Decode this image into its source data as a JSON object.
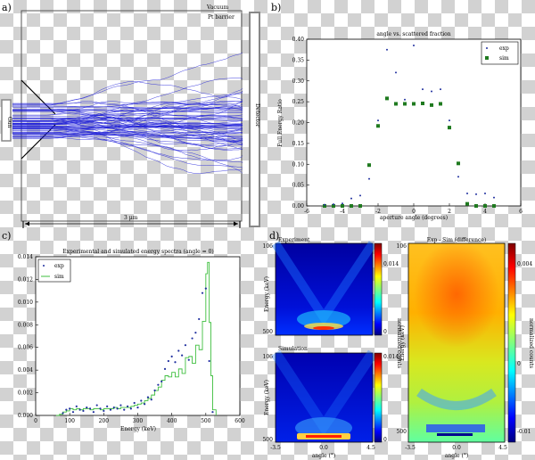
{
  "panel_labels": {
    "a": "a)",
    "b": "b)",
    "c": "c)",
    "d": "d)"
  },
  "panel_a": {
    "vacuum_label": "Vacuum",
    "barrier_label": "Pt barrier",
    "gun_label": "Gun",
    "detector_label": "Detector",
    "scale_label": "3 μm",
    "trajectory_color": "#1f1fd8"
  },
  "chart_data": [
    {
      "id": "b",
      "type": "scatter",
      "title": "angle vs. scattered fraction",
      "xlabel": "aperture angle (degrees)",
      "ylabel": "Full Energy Ratio",
      "xlim": [
        -6,
        6
      ],
      "ylim": [
        0,
        0.4
      ],
      "xticks": [
        -6,
        -4,
        -2,
        0,
        2,
        4,
        6
      ],
      "yticks": [
        0.0,
        0.05,
        0.1,
        0.15,
        0.2,
        0.25,
        0.3,
        0.35,
        0.4
      ],
      "legend_position": "top-right",
      "series": [
        {
          "name": "exp",
          "marker": "dot",
          "color": "#1f2f9f",
          "x": [
            -5.0,
            -4.5,
            -4.0,
            -3.5,
            -3.0,
            -2.5,
            -2.0,
            -1.5,
            -1.0,
            -0.5,
            0.0,
            0.5,
            1.0,
            1.5,
            2.0,
            2.5,
            3.0,
            3.5,
            4.0,
            4.5
          ],
          "y": [
            0.003,
            0.004,
            0.006,
            0.018,
            0.025,
            0.065,
            0.205,
            0.375,
            0.32,
            0.255,
            0.385,
            0.28,
            0.275,
            0.28,
            0.205,
            0.07,
            0.03,
            0.028,
            0.03,
            0.02
          ]
        },
        {
          "name": "sim",
          "marker": "square",
          "color": "#1f7a1f",
          "x": [
            -5.0,
            -4.5,
            -4.0,
            -3.5,
            -3.0,
            -2.5,
            -2.0,
            -1.5,
            -1.0,
            -0.5,
            0.0,
            0.5,
            1.0,
            1.5,
            2.0,
            2.5,
            3.0,
            3.5,
            4.0,
            4.5
          ],
          "y": [
            0.0,
            0.0,
            0.0,
            0.0,
            0.0,
            0.098,
            0.192,
            0.258,
            0.245,
            0.245,
            0.245,
            0.246,
            0.242,
            0.245,
            0.188,
            0.102,
            0.005,
            0.0,
            0.0,
            0.0
          ]
        }
      ]
    },
    {
      "id": "c",
      "type": "line",
      "title": "Experimental and simulated energy spectra (angle = 0)",
      "xlabel": "Energy (keV)",
      "ylabel": "",
      "xlim": [
        0,
        600
      ],
      "ylim": [
        0,
        0.014
      ],
      "xticks": [
        0,
        100,
        200,
        300,
        400,
        500,
        600
      ],
      "yticks": [
        0.0,
        0.002,
        0.004,
        0.006,
        0.008,
        0.01,
        0.012,
        0.014
      ],
      "ytick_labels": [
        "0.000",
        "0.002",
        "0.004",
        "0.006",
        "0.008",
        "0.010",
        "0.012",
        "0.014"
      ],
      "legend_position": "top-left",
      "series": [
        {
          "name": "exp",
          "marker": "dot",
          "color": "#1f2f9f",
          "x": [
            80,
            90,
            100,
            110,
            120,
            130,
            140,
            150,
            160,
            170,
            180,
            190,
            200,
            210,
            220,
            230,
            240,
            250,
            260,
            270,
            280,
            290,
            300,
            310,
            320,
            330,
            340,
            350,
            360,
            370,
            380,
            390,
            400,
            410,
            420,
            430,
            440,
            450,
            460,
            470,
            480,
            490,
            500,
            510,
            520
          ],
          "y": [
            0.0002,
            0.0005,
            0.0006,
            0.0003,
            0.0008,
            0.0005,
            0.0004,
            0.0007,
            0.0006,
            0.0003,
            0.0009,
            0.0006,
            0.0004,
            0.0008,
            0.0005,
            0.0007,
            0.0006,
            0.0009,
            0.0005,
            0.0008,
            0.0006,
            0.0011,
            0.0007,
            0.0013,
            0.001,
            0.0016,
            0.0014,
            0.0022,
            0.0027,
            0.003,
            0.0041,
            0.0048,
            0.0052,
            0.0047,
            0.0057,
            0.0053,
            0.0062,
            0.0049,
            0.0068,
            0.0073,
            0.0085,
            0.0108,
            0.0112,
            0.0048,
            0.0003
          ]
        },
        {
          "name": "sim",
          "marker": "step",
          "color": "#3fbf3f",
          "x": [
            60,
            70,
            80,
            90,
            100,
            110,
            120,
            130,
            140,
            150,
            160,
            170,
            180,
            190,
            200,
            210,
            220,
            230,
            240,
            250,
            260,
            270,
            280,
            290,
            300,
            310,
            320,
            330,
            340,
            350,
            360,
            370,
            380,
            390,
            400,
            410,
            420,
            430,
            440,
            450,
            460,
            470,
            480,
            490,
            500,
            505,
            510,
            515,
            520,
            530
          ],
          "y": [
            0.0,
            0.0001,
            0.0003,
            0.0004,
            0.0006,
            0.0005,
            0.0006,
            0.0005,
            0.0006,
            0.0006,
            0.0005,
            0.0006,
            0.0006,
            0.0005,
            0.0006,
            0.0006,
            0.0006,
            0.0007,
            0.0006,
            0.0007,
            0.0007,
            0.0007,
            0.0008,
            0.0009,
            0.001,
            0.0011,
            0.0013,
            0.0015,
            0.0018,
            0.0022,
            0.0025,
            0.0031,
            0.0035,
            0.0034,
            0.0038,
            0.0034,
            0.0041,
            0.0037,
            0.0051,
            0.0052,
            0.0046,
            0.0062,
            0.0058,
            0.0083,
            0.0125,
            0.0135,
            0.0082,
            0.0035,
            0.0005,
            0.0
          ]
        }
      ]
    },
    {
      "id": "d-experiment",
      "type": "heatmap",
      "title": "Experiment",
      "ylabel": "Energy (keV)",
      "ytick_labels": [
        "106",
        "500"
      ],
      "colorbar_label": "normalized counts",
      "colorbar_ticks": [
        "0.014",
        "0"
      ],
      "colormap": "jet"
    },
    {
      "id": "d-simulation",
      "type": "heatmap",
      "title": "Simulation",
      "xlabel": "angle (°)",
      "ylabel": "Energy (keV)",
      "xtick_labels": [
        "-3.5",
        "0.0",
        "4.5"
      ],
      "ytick_labels": [
        "106",
        "500"
      ],
      "colorbar_label": "normalized counts",
      "colorbar_ticks": [
        "0.014",
        "0"
      ],
      "colormap": "jet"
    },
    {
      "id": "d-difference",
      "type": "heatmap",
      "title": "Exp - Sim (difference)",
      "xlabel": "angle (°)",
      "ylabel": "Energy (keV)",
      "xtick_labels": [
        "-3.5",
        "0.0",
        "4.5"
      ],
      "ytick_labels": [
        "106",
        "500"
      ],
      "colorbar_label": "normalized counts",
      "colorbar_ticks": [
        "0.004",
        "0",
        "-0.01"
      ],
      "colormap": "jet"
    }
  ]
}
